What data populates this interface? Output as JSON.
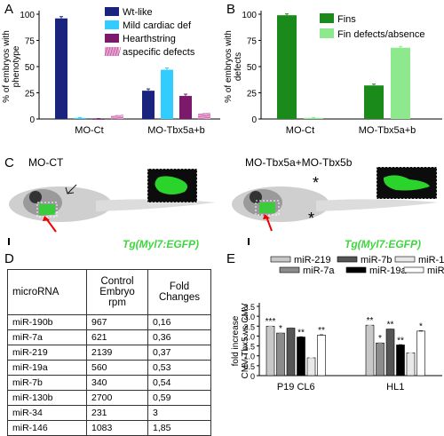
{
  "panel_labels": {
    "a": "A",
    "b": "B",
    "c": "C",
    "d": "D",
    "e": "E"
  },
  "panel_c": {
    "left_title": "MO-CT",
    "right_title": "MO-Tbx5a+MO-Tbx5b",
    "tg_left": "Tg(Myl7:EGFP)",
    "tg_right": "Tg(Myl7:EGFP)",
    "asterisk": "*"
  },
  "table": {
    "headers": [
      "microRNA",
      "Control Embryo rpm",
      "Fold Changes"
    ],
    "rows": [
      [
        "miR-190b",
        "967",
        "0,16"
      ],
      [
        "miR-7a",
        "621",
        "0,36"
      ],
      [
        "miR-219",
        "2139",
        "0,37"
      ],
      [
        "miR-19a",
        "560",
        "0,53"
      ],
      [
        "miR-7b",
        "340",
        "0,54"
      ],
      [
        "miR-130b",
        "2700",
        "0,59"
      ],
      [
        "miR-34",
        "231",
        "3"
      ],
      [
        "miR-146",
        "1083",
        "1,85"
      ]
    ]
  },
  "chart_data": [
    {
      "type": "bar",
      "ylabel": "% of embryos with phenotype",
      "ylim": [
        0,
        100
      ],
      "yticks": [
        0,
        25,
        50,
        75,
        100
      ],
      "categories": [
        "MO-Ct",
        "MO-Tbx5a+b"
      ],
      "legend_position": "top-right",
      "series": [
        {
          "name": "Wt-like",
          "color": "#1a237e",
          "values": [
            96,
            27
          ]
        },
        {
          "name": "Mild cardiac def",
          "color": "#33ccff",
          "values": [
            1,
            47
          ]
        },
        {
          "name": "Hearthstring",
          "color": "#7b1a6a",
          "values": [
            0,
            22
          ]
        },
        {
          "name": "aspecific defects",
          "color": "#e8a0d0",
          "values": [
            3,
            5
          ]
        }
      ]
    },
    {
      "type": "bar",
      "ylabel": "% of embryos with defects",
      "ylim": [
        0,
        100
      ],
      "yticks": [
        0,
        25,
        50,
        75,
        100
      ],
      "categories": [
        "MO-Ct",
        "MO-Tbx5a+b"
      ],
      "legend_position": "top-right",
      "series": [
        {
          "name": "Fins",
          "color": "#1a8a1a",
          "values": [
            99,
            32
          ]
        },
        {
          "name": "Fin defects/absence",
          "color": "#8ee88e",
          "values": [
            1,
            68
          ]
        }
      ]
    },
    {
      "type": "bar",
      "ylabel": "fold increase CMV-Tbx5 vs CMV",
      "ylim": [
        0,
        3.5
      ],
      "yticks": [
        "0",
        "0.5",
        "1.0",
        "1.5",
        "2.0",
        "2.5",
        "3.0",
        "3.5"
      ],
      "categories": [
        "P19 CL6",
        "HL1"
      ],
      "legend_position": "top",
      "series": [
        {
          "name": "miR-219",
          "color": "#c8c8c8",
          "values": [
            2.5,
            2.55
          ],
          "sig": [
            "***",
            "**"
          ]
        },
        {
          "name": "miR-7a",
          "color": "#8c8c8c",
          "values": [
            2.15,
            1.65
          ],
          "sig": [
            "*",
            "*"
          ]
        },
        {
          "name": "miR-7b",
          "color": "#555555",
          "values": [
            2.4,
            2.35
          ],
          "sig": [
            "",
            "**"
          ]
        },
        {
          "name": "miR-19a",
          "color": "#000000",
          "values": [
            1.95,
            1.55
          ],
          "sig": [
            "**",
            "**"
          ]
        },
        {
          "name": "miR-130b",
          "color": "#e8e8e8",
          "values": [
            0.9,
            1.15
          ],
          "sig": [
            "",
            ""
          ]
        },
        {
          "name": "miR-190b",
          "color": "#ffffff",
          "values": [
            2.05,
            2.25
          ],
          "sig": [
            "**",
            "*"
          ]
        }
      ]
    }
  ]
}
